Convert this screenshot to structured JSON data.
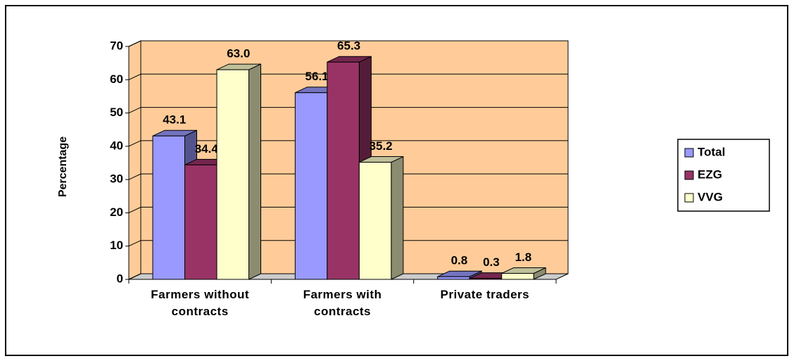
{
  "chart_data": {
    "type": "bar3d",
    "y_label": "Percentage",
    "categories": [
      "Farmers without contracts",
      "Farmers with contracts",
      "Private traders"
    ],
    "series": [
      {
        "name": "Total",
        "color": "#9999FF",
        "values": [
          43.1,
          56.1,
          0.8
        ],
        "value_labels": [
          "43.1",
          "56.1",
          "0.8"
        ]
      },
      {
        "name": "EZG",
        "color": "#993366",
        "values": [
          34.4,
          65.3,
          0.3
        ],
        "value_labels": [
          "34.4",
          "65.3",
          "0.3"
        ]
      },
      {
        "name": "VVG",
        "color": "#FFFFCC",
        "values": [
          63.0,
          35.2,
          1.8
        ],
        "value_labels": [
          "63.0",
          "35.2",
          "1.8"
        ]
      }
    ],
    "ylim": [
      0,
      70
    ],
    "yticks": [
      0,
      10,
      20,
      30,
      40,
      50,
      60,
      70
    ],
    "grid": true,
    "wall_color": "#FFCC99",
    "legend": "right"
  }
}
